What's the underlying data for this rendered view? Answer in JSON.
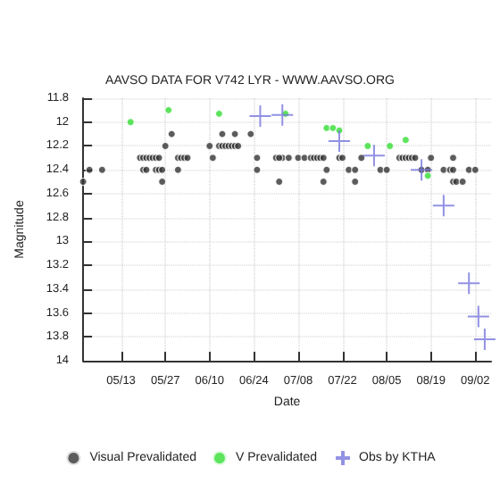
{
  "chart_data": {
    "type": "scatter",
    "title": "AAVSO DATA FOR V742 LYR - WWW.AAVSO.ORG",
    "xlabel": "Date",
    "ylabel": "Magnitude",
    "xlim": [
      "--05-01",
      "--09-07"
    ],
    "ylim": [
      14,
      11.8
    ],
    "xticks": [
      {
        "value": "--05-13",
        "label": "05/13"
      },
      {
        "value": "--05-27",
        "label": "05/27"
      },
      {
        "value": "--06-10",
        "label": "06/10"
      },
      {
        "value": "--06-24",
        "label": "06/24"
      },
      {
        "value": "--07-08",
        "label": "07/08"
      },
      {
        "value": "--07-22",
        "label": "07/22"
      },
      {
        "value": "--08-05",
        "label": "08/05"
      },
      {
        "value": "--08-19",
        "label": "08/19"
      },
      {
        "value": "--09-02",
        "label": "09/02"
      }
    ],
    "yticks": [
      11.8,
      12,
      12.2,
      12.4,
      12.6,
      12.8,
      13,
      13.2,
      13.4,
      13.6,
      13.8,
      14
    ],
    "grid": true,
    "legend": "bottom",
    "series": [
      {
        "name": "Visual Prevalidated",
        "color": "#333333",
        "marker": "circle",
        "x": [
          "--05-01",
          "--05-03",
          "--05-07",
          "--05-19",
          "--05-20",
          "--05-21",
          "--05-22",
          "--05-23",
          "--05-24",
          "--05-25",
          "--05-20",
          "--05-21",
          "--05-24",
          "--05-25",
          "--05-26",
          "--05-26",
          "--05-27",
          "--05-29",
          "--05-31",
          "--05-31",
          "--06-01",
          "--06-02",
          "--06-03",
          "--06-10",
          "--06-11",
          "--06-14",
          "--06-13",
          "--06-14",
          "--06-15",
          "--06-16",
          "--06-17",
          "--06-18",
          "--06-19",
          "--06-18",
          "--06-23",
          "--06-25",
          "--06-25",
          "--07-01",
          "--07-02",
          "--07-03",
          "--07-05",
          "--07-02",
          "--07-08",
          "--07-10",
          "--07-12",
          "--07-13",
          "--07-14",
          "--07-15",
          "--07-16",
          "--07-17",
          "--07-16",
          "--07-21",
          "--07-22",
          "--07-24",
          "--07-26",
          "--07-26",
          "--07-28",
          "--08-03",
          "--08-05",
          "--08-09",
          "--08-10",
          "--08-11",
          "--08-12",
          "--08-13",
          "--08-14",
          "--08-16",
          "--08-18",
          "--08-19",
          "--08-23",
          "--08-25",
          "--08-26",
          "--08-26",
          "--08-26",
          "--08-27",
          "--08-29",
          "--08-31",
          "--09-02"
        ],
        "values": [
          12.5,
          12.4,
          12.4,
          12.3,
          12.3,
          12.3,
          12.3,
          12.3,
          12.3,
          12.3,
          12.4,
          12.4,
          12.4,
          12.4,
          12.4,
          12.5,
          12.2,
          12.1,
          12.4,
          12.3,
          12.3,
          12.3,
          12.3,
          12.2,
          12.3,
          12.1,
          12.2,
          12.2,
          12.2,
          12.2,
          12.2,
          12.2,
          12.2,
          12.1,
          12.1,
          12.4,
          12.3,
          12.3,
          12.5,
          12.3,
          12.3,
          12.3,
          12.3,
          12.3,
          12.3,
          12.3,
          12.3,
          12.3,
          12.3,
          12.4,
          12.5,
          12.3,
          12.3,
          12.4,
          12.4,
          12.5,
          12.3,
          12.4,
          12.4,
          12.3,
          12.3,
          12.3,
          12.3,
          12.3,
          12.3,
          12.4,
          12.4,
          12.3,
          12.4,
          12.4,
          12.4,
          12.3,
          12.5,
          12.5,
          12.5,
          12.4,
          12.4
        ]
      },
      {
        "name": "V Prevalidated",
        "color": "#33dd33",
        "marker": "circle",
        "x": [
          "--05-16",
          "--05-28",
          "--06-13",
          "--07-04",
          "--07-17",
          "--07-19",
          "--07-21",
          "--07-30",
          "--08-06",
          "--08-11",
          "--08-18"
        ],
        "values": [
          12.0,
          11.9,
          11.93,
          11.93,
          12.05,
          12.05,
          12.07,
          12.2,
          12.2,
          12.15,
          12.45
        ]
      },
      {
        "name": "Obs by KTHA",
        "color": "#7777dd",
        "marker": "cross",
        "x": [
          "--06-26",
          "--07-03",
          "--07-21",
          "--08-01",
          "--08-16",
          "--08-23",
          "--08-31",
          "--09-03",
          "--09-05"
        ],
        "values": [
          11.95,
          11.94,
          12.16,
          12.28,
          12.4,
          12.7,
          13.35,
          13.63,
          13.82
        ]
      }
    ]
  }
}
